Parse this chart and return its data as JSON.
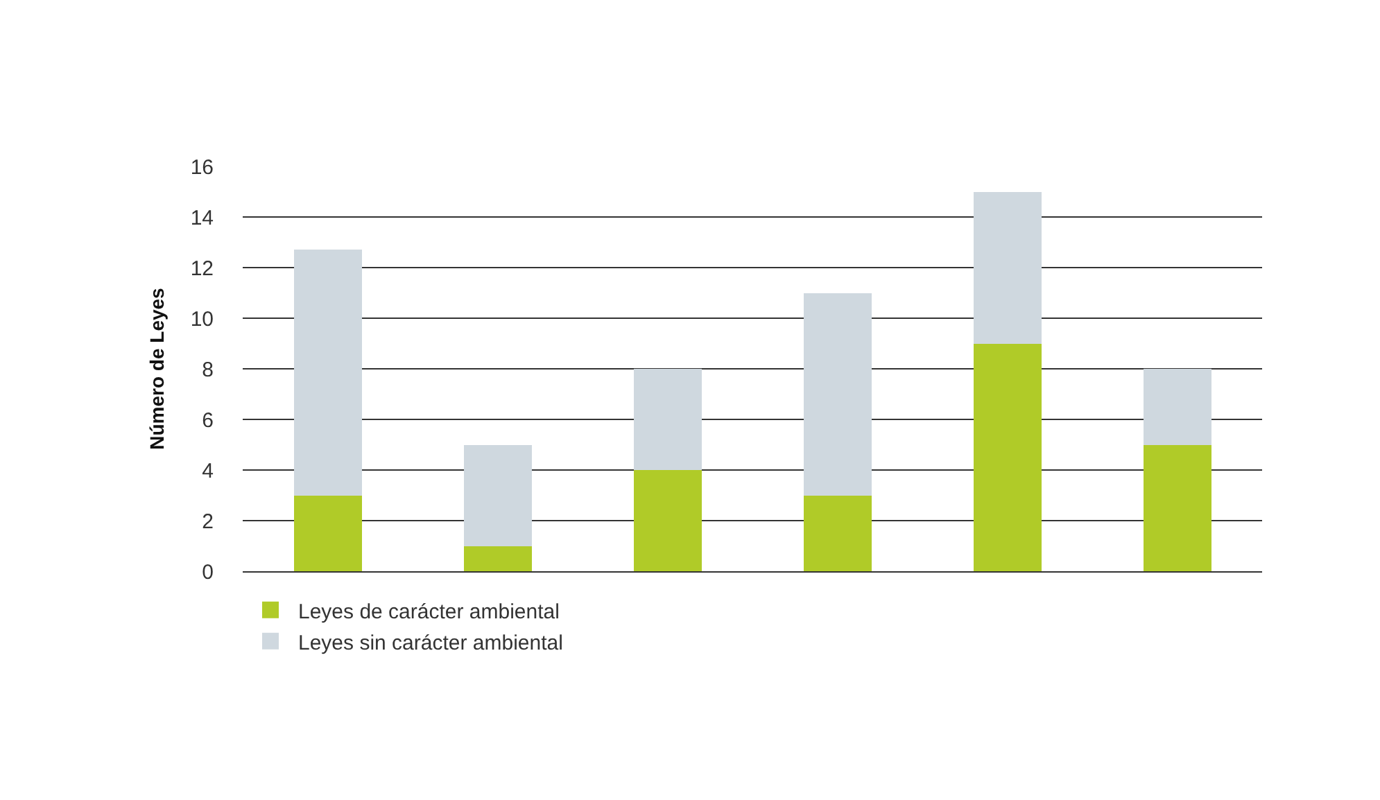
{
  "chart_data": {
    "type": "bar",
    "stacked": true,
    "ylabel": "Número de Leyes",
    "categories": [
      null,
      null,
      null,
      null,
      null,
      null
    ],
    "series": [
      {
        "name": "Leyes de carácter ambiental",
        "color": "#b0cb28",
        "values": [
          3,
          1,
          4,
          3,
          9,
          5
        ]
      },
      {
        "name": "Leyes sin carácter ambiental",
        "color": "#cfd8df",
        "values": [
          9.7,
          4,
          4,
          8,
          6,
          3
        ]
      }
    ],
    "ylim": [
      0,
      16
    ],
    "yticks": [
      0,
      2,
      4,
      6,
      8,
      10,
      12,
      14,
      16
    ],
    "grid": "y",
    "legend": "bottom"
  }
}
